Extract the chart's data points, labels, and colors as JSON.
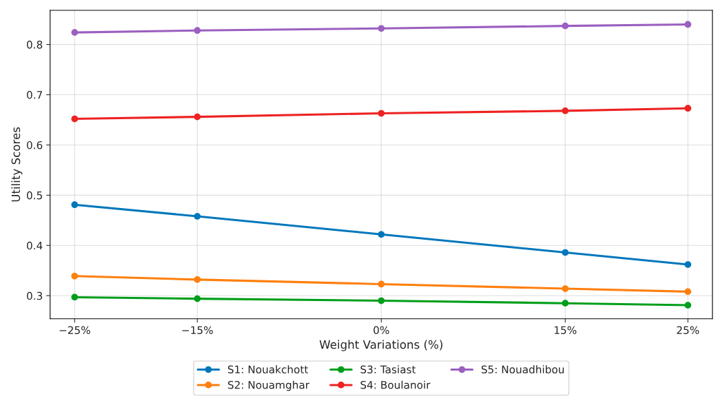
{
  "chart_data": {
    "type": "line",
    "xlabel": "Weight Variations (%)",
    "ylabel": "Utility Scores",
    "x": [
      -25,
      -15,
      0,
      15,
      25
    ],
    "series": [
      {
        "name": "S1: Nouakchott",
        "color": "#0077bb",
        "values": [
          0.481,
          0.458,
          0.422,
          0.386,
          0.362
        ]
      },
      {
        "name": "S2: Nouamghar",
        "color": "#ff7f0e",
        "values": [
          0.339,
          0.332,
          0.323,
          0.314,
          0.308
        ]
      },
      {
        "name": "S3: Tasiast",
        "color": "#009e1a",
        "values": [
          0.297,
          0.294,
          0.29,
          0.285,
          0.281
        ]
      },
      {
        "name": "S4: Boulanoir",
        "color": "#ee2222",
        "values": [
          0.652,
          0.656,
          0.663,
          0.668,
          0.673
        ]
      },
      {
        "name": "S5: Nouadhibou",
        "color": "#9b5fc0",
        "values": [
          0.824,
          0.828,
          0.832,
          0.837,
          0.84
        ]
      }
    ],
    "xlim": [
      -27,
      27
    ],
    "xticks": [
      {
        "value": -25,
        "label": "−25%"
      },
      {
        "value": -15,
        "label": "−15%"
      },
      {
        "value": 0,
        "label": "0%"
      },
      {
        "value": 15,
        "label": "15%"
      },
      {
        "value": 25,
        "label": "25%"
      }
    ],
    "ylim": [
      0.254,
      0.868
    ],
    "yticks": [
      0.3,
      0.4,
      0.5,
      0.6,
      0.7,
      0.8
    ],
    "grid": true,
    "legend": "bottom",
    "marker": "circle",
    "line_style": "solid"
  }
}
